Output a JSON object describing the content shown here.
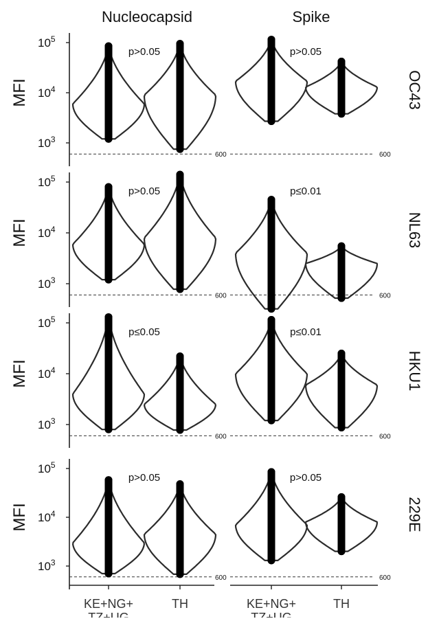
{
  "chart_data": {
    "type": "violin",
    "columns": [
      "Nucleocapsid",
      "Spike"
    ],
    "rows": [
      "OC43",
      "NL63",
      "HKU1",
      "229E"
    ],
    "categories": [
      "KE+NG+\nTZ+UG",
      "TH"
    ],
    "ylabel": "MFI",
    "yscale": "log",
    "ylim": [
      300,
      150000
    ],
    "yticks": [
      {
        "value": 1000,
        "base": "10",
        "exp": "3"
      },
      {
        "value": 10000,
        "base": "10",
        "exp": "4"
      },
      {
        "value": 100000,
        "base": "10",
        "exp": "5"
      }
    ],
    "threshold": {
      "value": 600,
      "label": "600"
    },
    "panels": [
      {
        "row": "OC43",
        "column": "Nucleocapsid",
        "p_value": "p>0.05",
        "groups": [
          {
            "category": "KE+NG+\nTZ+UG",
            "min": 1200,
            "max": 85000,
            "mode": 6000
          },
          {
            "category": "TH",
            "min": 750,
            "max": 95000,
            "mode": 9000
          }
        ]
      },
      {
        "row": "OC43",
        "column": "Spike",
        "p_value": "p>0.05",
        "groups": [
          {
            "category": "KE+NG+\nTZ+UG",
            "min": 2700,
            "max": 115000,
            "mode": 17000
          },
          {
            "category": "TH",
            "min": 3800,
            "max": 42000,
            "mode": 13000
          }
        ]
      },
      {
        "row": "NL63",
        "column": "Nucleocapsid",
        "p_value": "p>0.05",
        "groups": [
          {
            "category": "KE+NG+\nTZ+UG",
            "min": 1200,
            "max": 80000,
            "mode": 6000
          },
          {
            "category": "TH",
            "min": 780,
            "max": 140000,
            "mode": 8000
          }
        ]
      },
      {
        "row": "NL63",
        "column": "Spike",
        "p_value": "p≤0.01",
        "groups": [
          {
            "category": "KE+NG+\nTZ+UG",
            "min": 320,
            "max": 45000,
            "mode": 4000
          },
          {
            "category": "TH",
            "min": 520,
            "max": 5500,
            "mode": 2500
          }
        ]
      },
      {
        "row": "HKU1",
        "column": "Nucleocapsid",
        "p_value": "p≤0.05",
        "groups": [
          {
            "category": "KE+NG+\nTZ+UG",
            "min": 800,
            "max": 130000,
            "mode": 4000
          },
          {
            "category": "TH",
            "min": 780,
            "max": 22000,
            "mode": 2500
          }
        ]
      },
      {
        "row": "HKU1",
        "column": "Spike",
        "p_value": "p≤0.01",
        "groups": [
          {
            "category": "KE+NG+\nTZ+UG",
            "min": 1200,
            "max": 115000,
            "mode": 10000
          },
          {
            "category": "TH",
            "min": 870,
            "max": 25000,
            "mode": 6000
          }
        ]
      },
      {
        "row": "229E",
        "column": "Nucleocapsid",
        "p_value": "p>0.05",
        "groups": [
          {
            "category": "KE+NG+\nTZ+UG",
            "min": 700,
            "max": 58000,
            "mode": 3000
          },
          {
            "category": "TH",
            "min": 680,
            "max": 48000,
            "mode": 4500
          }
        ]
      },
      {
        "row": "229E",
        "column": "Spike",
        "p_value": "p>0.05",
        "groups": [
          {
            "category": "KE+NG+\nTZ+UG",
            "min": 1300,
            "max": 85000,
            "mode": 7000
          },
          {
            "category": "TH",
            "min": 2000,
            "max": 26000,
            "mode": 8000
          }
        ]
      }
    ]
  }
}
